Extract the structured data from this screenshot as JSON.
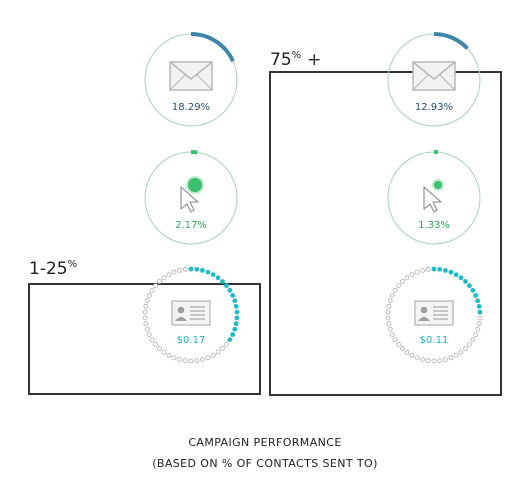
{
  "chart_data": {
    "type": "radial-progress-infographic",
    "title": "CAMPAIGN PERFORMANCE",
    "subtitle": "(BASED ON % OF CONTACTS SENT TO)",
    "groups": [
      {
        "label_main": "1-25",
        "label_sup": "%",
        "label_suffix": "",
        "metrics": [
          {
            "metric": "open",
            "icon": "envelope-icon",
            "value": 0.1829,
            "label": "18.29%"
          },
          {
            "metric": "click",
            "icon": "cursor-click-icon",
            "value": 0.0217,
            "label": "2.17%"
          },
          {
            "metric": "cost",
            "icon": "contact-card-icon",
            "value": 0.36,
            "label": "$0.17"
          }
        ]
      },
      {
        "label_main": "75",
        "label_sup": "%",
        "label_suffix": "+",
        "metrics": [
          {
            "metric": "open",
            "icon": "envelope-icon",
            "value": 0.1293,
            "label": "12.93%"
          },
          {
            "metric": "click",
            "icon": "cursor-click-icon",
            "value": 0.0133,
            "label": "1.33%"
          },
          {
            "metric": "cost",
            "icon": "contact-card-icon",
            "value": 0.25,
            "label": "$0.11"
          }
        ]
      }
    ]
  },
  "colors": {
    "ring_open": "#3f86a8",
    "ring_click": "#3cc06d",
    "ring_cost": "#1fbcc8",
    "ring_base": "#a9d1b8",
    "dot_base": "#b8b8b8",
    "label_open": "#1e4f74",
    "label_click": "#2ea55a",
    "label_cost": "#19b5c0",
    "box": "#333333",
    "icon_gray": "#b7b7b7"
  }
}
